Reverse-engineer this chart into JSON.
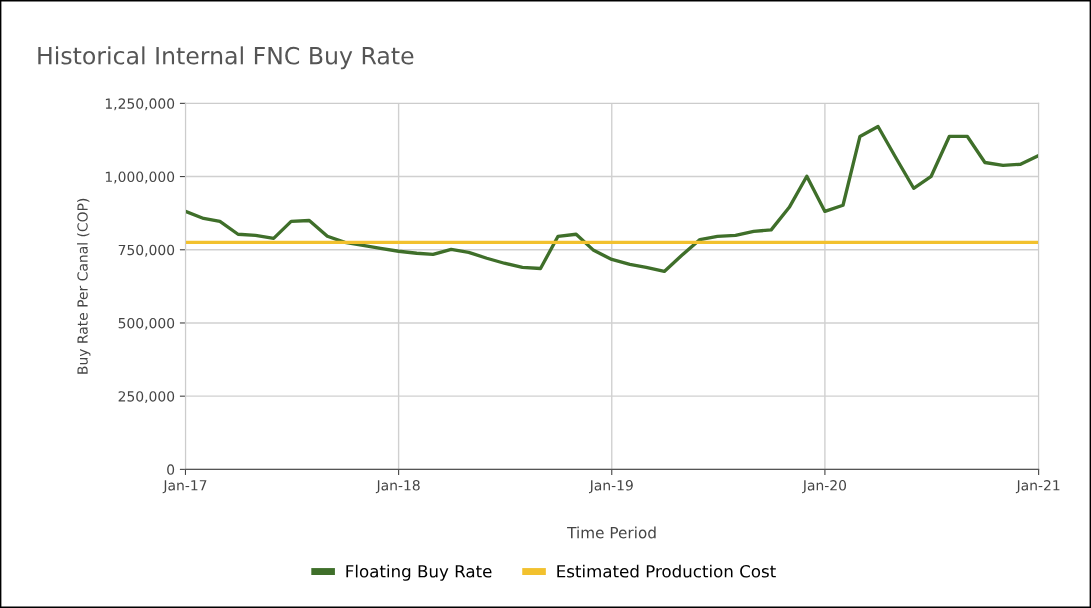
{
  "chart_data": {
    "type": "line",
    "title": "Historical Internal FNC Buy Rate",
    "xlabel": "Time Period",
    "ylabel": "Buy Rate Per Canal (COP)",
    "x": [
      "2017-01",
      "2017-02",
      "2017-03",
      "2017-04",
      "2017-05",
      "2017-06",
      "2017-07",
      "2017-08",
      "2017-09",
      "2017-10",
      "2017-11",
      "2017-12",
      "2018-01",
      "2018-02",
      "2018-03",
      "2018-04",
      "2018-05",
      "2018-06",
      "2018-07",
      "2018-08",
      "2018-09",
      "2018-10",
      "2018-11",
      "2018-12",
      "2019-01",
      "2019-02",
      "2019-03",
      "2019-04",
      "2019-05",
      "2019-06",
      "2019-07",
      "2019-08",
      "2019-09",
      "2019-10",
      "2019-11",
      "2019-12",
      "2020-01",
      "2020-02",
      "2020-03",
      "2020-04",
      "2020-05",
      "2020-06",
      "2020-07",
      "2020-08",
      "2020-09",
      "2020-10",
      "2020-11",
      "2020-12",
      "2021-01"
    ],
    "series": [
      {
        "name": "Floating Buy Rate",
        "color": "#3f6f2a",
        "values": [
          881000,
          857000,
          847000,
          803000,
          799000,
          789000,
          847000,
          850000,
          796000,
          775000,
          765000,
          755000,
          745000,
          738000,
          734000,
          751000,
          741000,
          721000,
          704000,
          690000,
          686000,
          796000,
          803000,
          748000,
          717000,
          700000,
          690000,
          676000,
          731000,
          785000,
          796000,
          799000,
          813000,
          818000,
          895000,
          1001000,
          881000,
          902000,
          1137000,
          1171000,
          1066000,
          960000,
          1001000,
          1137000,
          1137000,
          1048000,
          1038000,
          1042000,
          1072000
        ]
      },
      {
        "name": "Estimated Production Cost",
        "color": "#f2c12e",
        "x": [
          "2017-01",
          "2021-01"
        ],
        "values": [
          775000,
          775000
        ]
      }
    ],
    "xlim": [
      "2017-01",
      "2021-01"
    ],
    "xticks": [
      {
        "value": "2017-01",
        "label": "Jan-17"
      },
      {
        "value": "2018-01",
        "label": "Jan-18"
      },
      {
        "value": "2019-01",
        "label": "Jan-19"
      },
      {
        "value": "2020-01",
        "label": "Jan-20"
      },
      {
        "value": "2021-01",
        "label": "Jan-21"
      }
    ],
    "ylim": [
      0,
      1250000
    ],
    "yticks": [
      {
        "value": 0,
        "label": "0"
      },
      {
        "value": 250000,
        "label": "250,000"
      },
      {
        "value": 500000,
        "label": "500,000"
      },
      {
        "value": 750000,
        "label": "750,000"
      },
      {
        "value": 1000000,
        "label": "1,000,000"
      },
      {
        "value": 1250000,
        "label": "1,250,000"
      }
    ],
    "grid": true,
    "legend": "bottom",
    "marker": "none",
    "line_style": "solid"
  }
}
